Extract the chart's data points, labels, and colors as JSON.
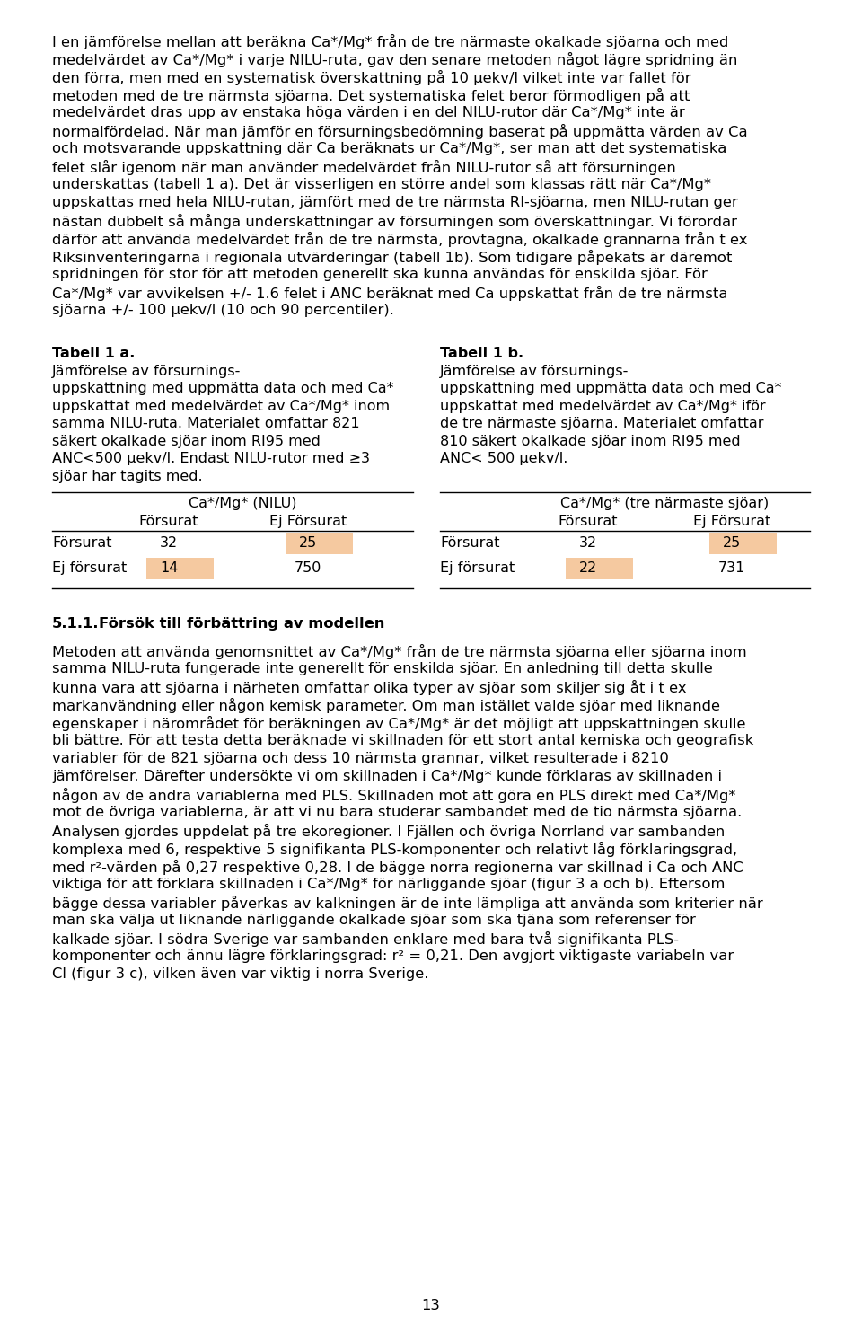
{
  "background_color": "#ffffff",
  "page_number": "13",
  "text_color": "#000000",
  "highlight_color": "#f5c9a0",
  "paragraph1_lines": [
    "I en jämförelse mellan att beräkna Ca*/Mg* från de tre närmaste okalkade sjöarna och med",
    "medelvärdet av Ca*/Mg* i varje NILU-ruta, gav den senare metoden något lägre spridning än",
    "den förra, men med en systematisk överskattning på 10 μekv/l vilket inte var fallet för",
    "metoden med de tre närmsta sjöarna. Det systematiska felet beror förmodligen på att",
    "medelvärdet dras upp av enstaka höga värden i en del NILU-rutor där Ca*/Mg* inte är",
    "normalfördelad. När man jämför en försurningsbedömning baserat på uppmätta värden av Ca",
    "och motsvarande uppskattning där Ca beräknats ur Ca*/Mg*, ser man att det systematiska",
    "felet slår igenom när man använder medelvärdet från NILU-rutor så att försurningen",
    "underskattas (tabell 1 a). Det är visserligen en större andel som klassas rätt när Ca*/Mg*",
    "uppskattas med hela NILU-rutan, jämfört med de tre närmsta RI-sjöarna, men NILU-rutan ger",
    "nästan dubbelt så många underskattningar av försurningen som överskattningar. Vi förordar",
    "därför att använda medelvärdet från de tre närmsta, provtagna, okalkade grannarna från t ex",
    "Riksinventeringarna i regionala utvärderingar (tabell 1b). Som tidigare påpekats är däremot",
    "spridningen för stor för att metoden generellt ska kunna användas för enskilda sjöar. För",
    "Ca*/Mg* var avvikelsen +/- 1.6 felet i ANC beräknat med Ca uppskattat från de tre närmsta",
    "sjöarna +/- 100 μekv/l (10 och 90 percentiler)."
  ],
  "table1a_caption_lines": [
    [
      "bold",
      "Tabell 1 a. "
    ],
    [
      "normal",
      "Jämförelse av försurnings-"
    ],
    [
      "normal",
      "uppskattning med uppmätta data och med Ca*"
    ],
    [
      "normal",
      "uppskattat med medelvärdet av Ca*/Mg* inom"
    ],
    [
      "normal",
      "samma NILU-ruta. Materialet omfattar 821"
    ],
    [
      "normal",
      "säkert okalkade sjöar inom RI95 med"
    ],
    [
      "normal",
      "ANC<500 μekv/l. Endast NILU-rutor med ≥3"
    ],
    [
      "normal",
      "sjöar har tagits med."
    ]
  ],
  "table1b_caption_lines": [
    [
      "bold",
      "Tabell 1 b. "
    ],
    [
      "normal",
      "Jämförelse av försurnings-"
    ],
    [
      "normal",
      "uppskattning med uppmätta data och med Ca*"
    ],
    [
      "normal",
      "uppskattat med medelvärdet av Ca*/Mg* iför"
    ],
    [
      "normal",
      "de tre närmaste sjöarna. Materialet omfattar"
    ],
    [
      "normal",
      "810 säkert okalkade sjöar inom RI95 med"
    ],
    [
      "normal",
      "ANC< 500 μekv/l."
    ]
  ],
  "table1a_header_span": "Ca*/Mg* (NILU)",
  "table1b_header_span": "Ca*/Mg* (tre närmaste sjöar)",
  "col_headers": [
    "Försurat",
    "Ej Försurat"
  ],
  "row_headers": [
    "Försurat",
    "Ej försurat"
  ],
  "table1a_data": [
    [
      32,
      25
    ],
    [
      14,
      750
    ]
  ],
  "table1b_data": [
    [
      32,
      25
    ],
    [
      22,
      731
    ]
  ],
  "table1a_highlight": [
    [
      false,
      true
    ],
    [
      true,
      false
    ]
  ],
  "table1b_highlight": [
    [
      false,
      true
    ],
    [
      true,
      false
    ]
  ],
  "section_title_num": "5.1.1.",
  "section_title": "Försök till förbättring av modellen",
  "paragraph2_lines": [
    "Metoden att använda genomsnittet av Ca*/Mg* från de tre närmsta sjöarna eller sjöarna inom",
    "samma NILU-ruta fungerade inte generellt för enskilda sjöar. En anledning till detta skulle",
    "kunna vara att sjöarna i närheten omfattar olika typer av sjöar som skiljer sig åt i t ex",
    "markanvändning eller någon kemisk parameter. Om man istället valde sjöar med liknande",
    "egenskaper i närområdet för beräkningen av Ca*/Mg* är det möjligt att uppskattningen skulle",
    "bli bättre. För att testa detta beräknade vi skillnaden för ett stort antal kemiska och geografisk",
    "variabler för de 821 sjöarna och dess 10 närmsta grannar, vilket resulterade i 8210",
    "jämförelser. Därefter undersökte vi om skillnaden i Ca*/Mg* kunde förklaras av skillnaden i",
    "någon av de andra variablerna med PLS. Skillnaden mot att göra en PLS direkt med Ca*/Mg*",
    "mot de övriga variablerna, är att vi nu bara studerar sambandet med de tio närmsta sjöarna.",
    "Analysen gjordes uppdelat på tre ekoregioner. I Fjällen och övriga Norrland var sambanden",
    "komplexa med 6, respektive 5 signifikanta PLS-komponenter och relativt låg förklaringsgrad,",
    "med r²-värden på 0,27 respektive 0,28. I de bägge norra regionerna var skillnad i Ca och ANC",
    "viktiga för att förklara skillnaden i Ca*/Mg* för närliggande sjöar (figur 3 a och b). Eftersom",
    "bägge dessa variabler påverkas av kalkningen är de inte lämpliga att använda som kriterier när",
    "man ska välja ut liknande närliggande okalkade sjöar som ska tjäna som referenser för",
    "kalkade sjöar. I södra Sverige var sambanden enklare med bara två signifikanta PLS-",
    "komponenter och ännu lägre förklaringsgrad: r² = 0,21. Den avgjort viktigaste variabeln var",
    "Cl (figur 3 c), vilken även var viktig i norra Sverige."
  ]
}
